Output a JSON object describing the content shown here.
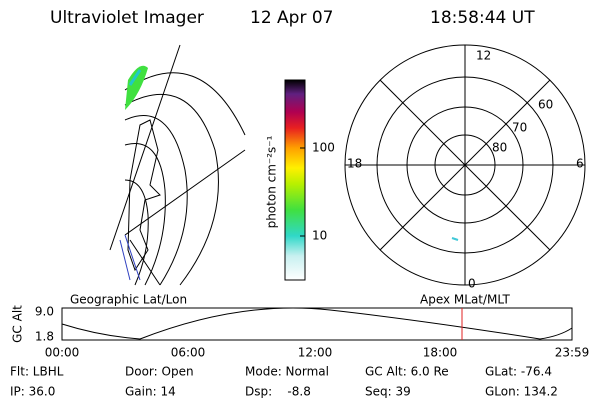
{
  "header": {
    "title": "Ultraviolet Imager",
    "date": "12 Apr 07",
    "time": "18:58:44 UT"
  },
  "colorbar": {
    "unit": "photon cm⁻²s⁻¹",
    "ticks": [
      "100",
      "10"
    ]
  },
  "polar": {
    "labels": [
      "12",
      "18",
      "6",
      "0",
      "60",
      "70",
      "80"
    ]
  },
  "alt_plot": {
    "left_title": "Geographic Lat/Lon",
    "right_title": "Apex MLat/MLT",
    "ylabel": "GC Alt",
    "yticks": [
      "9.0",
      "1.8"
    ],
    "xticks": [
      "00:00",
      "06:00",
      "12:00",
      "18:00",
      "23:59"
    ]
  },
  "info": {
    "rows": [
      [
        "Flt: LBHL",
        "Door: Open",
        "Mode: Normal",
        "GC Alt: 6.0 Re",
        "GLat: -76.4"
      ],
      [
        "IP: 36.0",
        "Gain: 14",
        "Dsp:    -8.8",
        "Seq: 39",
        "GLon: 134.2"
      ]
    ]
  }
}
